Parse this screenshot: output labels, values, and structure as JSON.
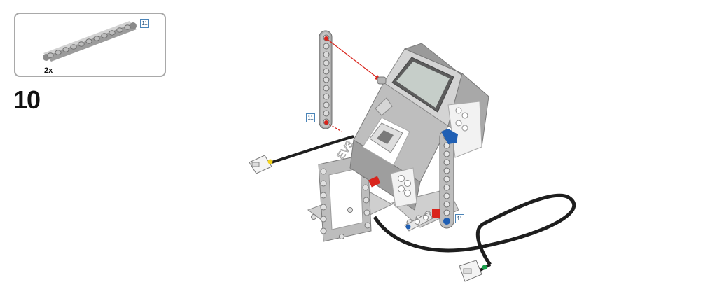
{
  "callout": {
    "quantity": "2x",
    "beam_length": "11"
  },
  "step": {
    "number": "10"
  },
  "labels": {
    "beam_left_length": "11",
    "beam_right_length": "11"
  },
  "brick": {
    "logo_text": "EV3"
  },
  "colors": {
    "frame": "#a9a9a9",
    "beam": "#b8b8b8",
    "arrow": "#d9241c",
    "cable": "#1e1e1e",
    "connector_left_dot": "#f2d21b",
    "connector_right_dot": "#18a04a",
    "pin_blue": "#1f5fb4",
    "pin_red": "#d9241c"
  }
}
